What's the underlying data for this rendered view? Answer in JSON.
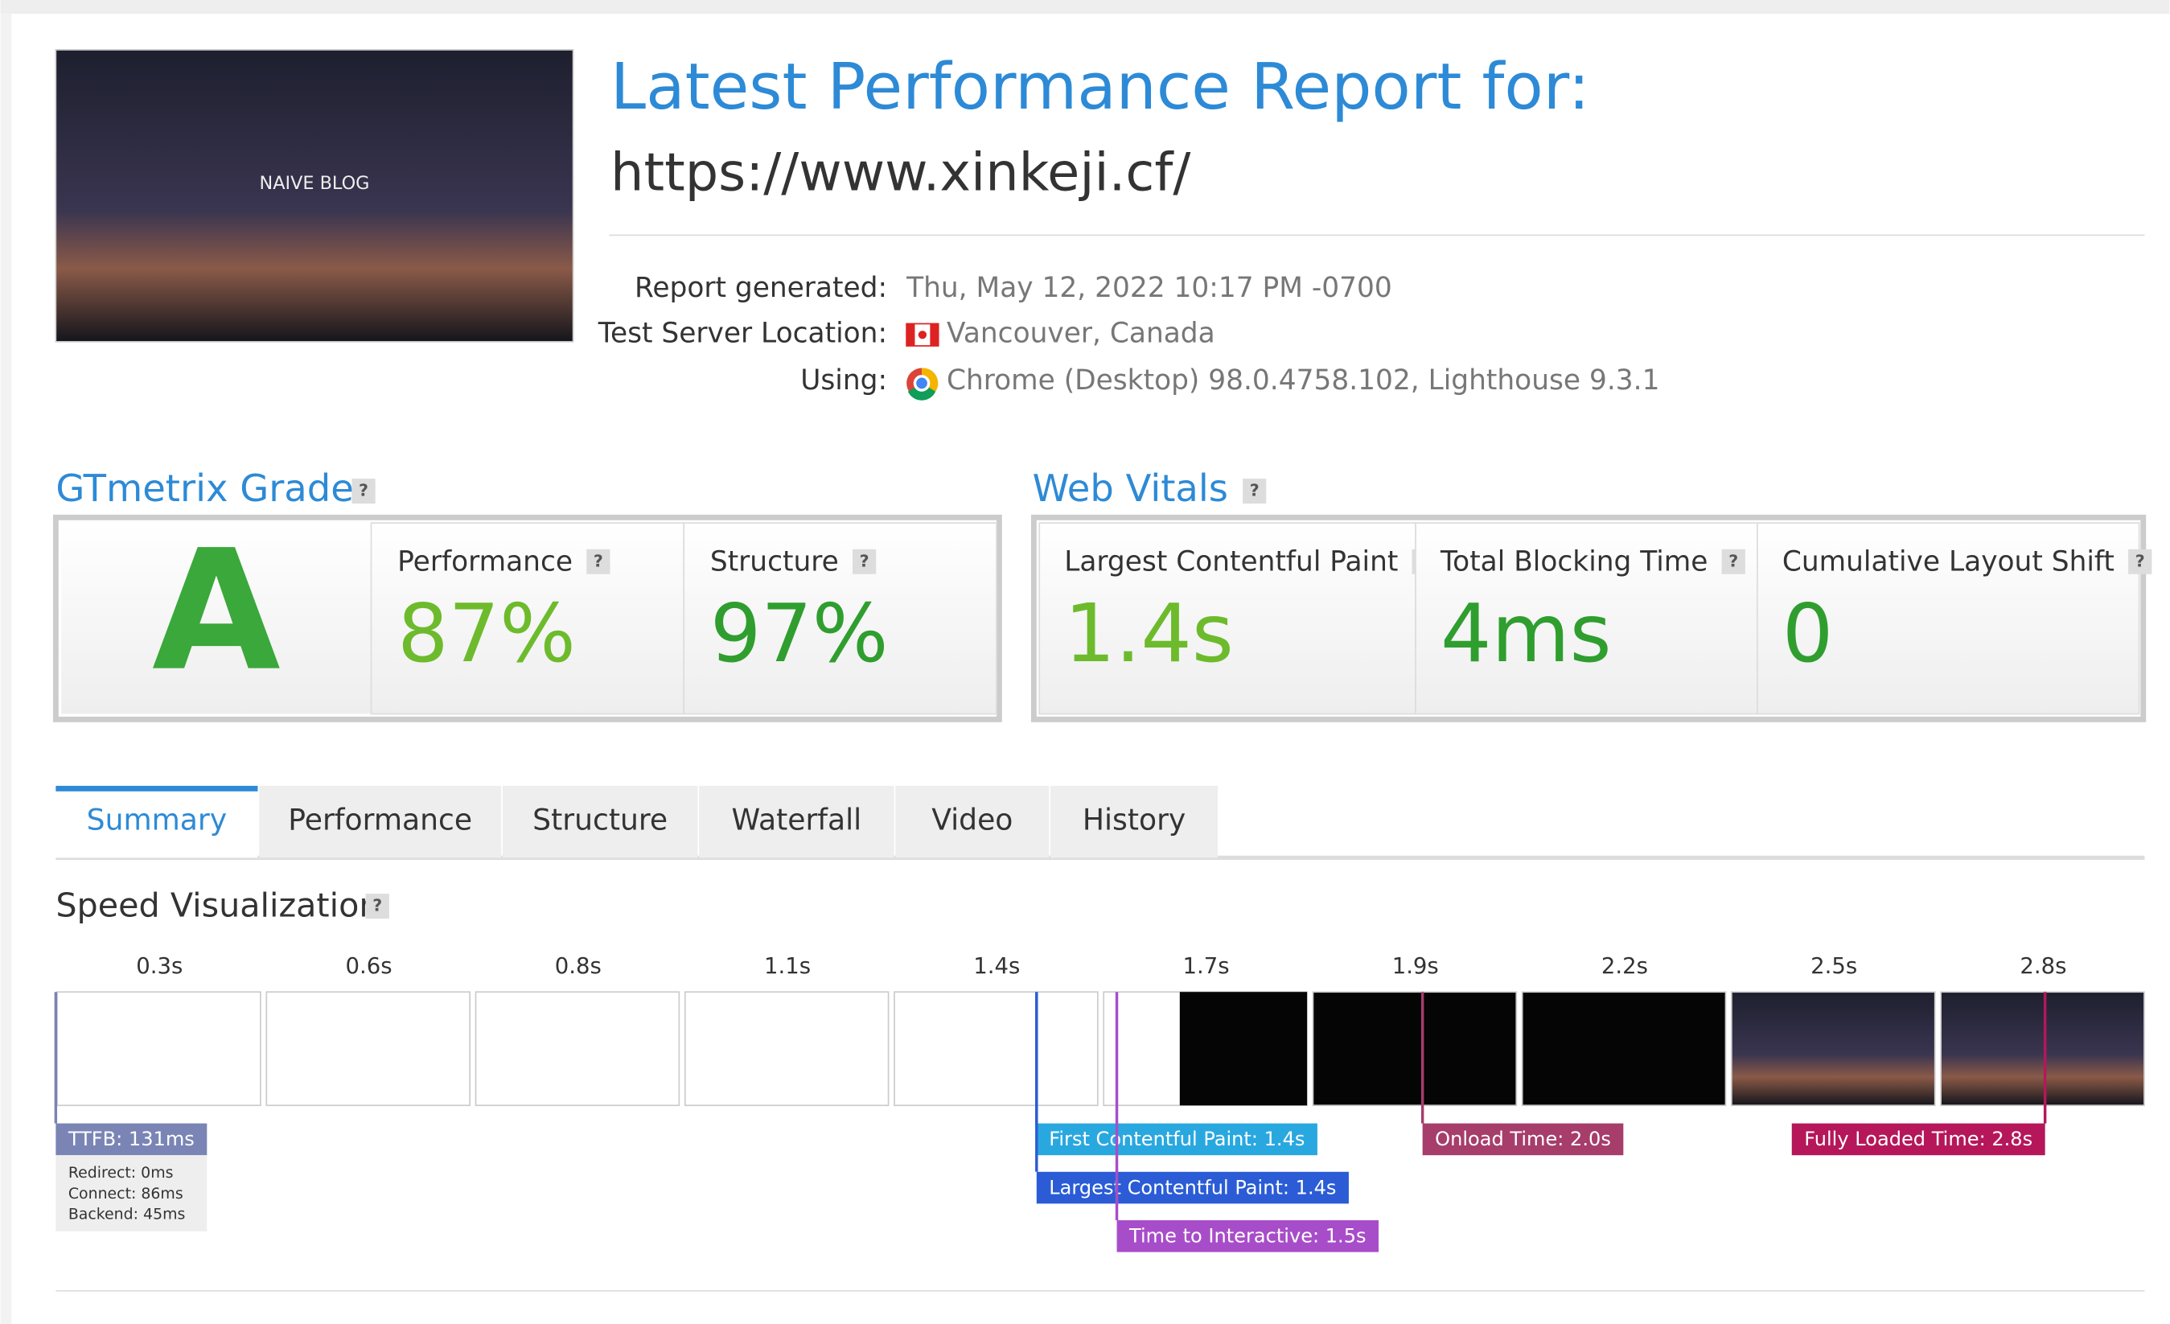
{
  "report": {
    "title": "Latest Performance Report for:",
    "url": "https://www.xinkeji.cf/",
    "thumbnail_title": "NAIVE BLOG"
  },
  "details": [
    {
      "label": "Report generated:",
      "value": "Thu, May 12, 2022 10:17 PM -0700"
    },
    {
      "label": "Test Server Location:",
      "value": "Vancouver, Canada"
    },
    {
      "label": "Using:",
      "value": "Chrome (Desktop) 98.0.4758.102, Lighthouse 9.3.1"
    }
  ],
  "help_icon": "?",
  "grade": {
    "title": "GTmetrix Grade",
    "grade": "A",
    "metrics": [
      {
        "label": "Performance",
        "value": "87%"
      },
      {
        "label": "Structure",
        "value": "97%"
      }
    ]
  },
  "vitals": {
    "title": "Web Vitals",
    "metrics": [
      {
        "label": "Largest Contentful Paint",
        "value": "1.4s"
      },
      {
        "label": "Total Blocking Time",
        "value": "4ms"
      },
      {
        "label": "Cumulative Layout Shift",
        "value": "0"
      }
    ]
  },
  "tabs": [
    "Summary",
    "Performance",
    "Structure",
    "Waterfall",
    "Video",
    "History"
  ],
  "speed": {
    "title": "Speed Visualization",
    "frames": [
      "0.3s",
      "0.6s",
      "0.8s",
      "1.1s",
      "1.4s",
      "1.7s",
      "1.9s",
      "2.2s",
      "2.5s",
      "2.8s"
    ],
    "markers": [
      {
        "label": "TTFB: 131ms",
        "details": [
          "Redirect: 0ms",
          "Connect: 86ms",
          "Backend: 45ms"
        ]
      },
      {
        "label": "First Contentful Paint: 1.4s"
      },
      {
        "label": "Largest Contentful Paint: 1.4s"
      },
      {
        "label": "Time to Interactive: 1.5s"
      },
      {
        "label": "Onload Time: 2.0s"
      },
      {
        "label": "Fully Loaded Time: 2.8s"
      }
    ]
  }
}
